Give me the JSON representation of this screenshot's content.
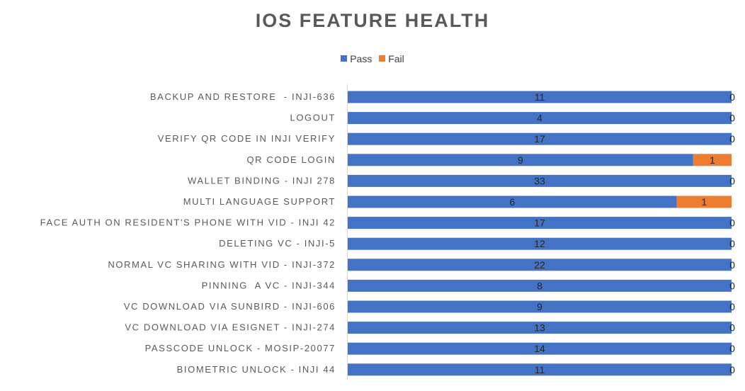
{
  "chart_data": {
    "type": "bar",
    "orientation": "horizontal",
    "stacked": true,
    "normalized": true,
    "title": "IOS FEATURE HEALTH",
    "legend_position": "top",
    "grid": false,
    "categories": [
      "BACKUP AND RESTORE  - INJI-636",
      "LOGOUT",
      "VERIFY QR CODE IN INJI VERIFY",
      "QR CODE LOGIN",
      "WALLET BINDING - INJI 278",
      "MULTI LANGUAGE SUPPORT",
      "FACE AUTH ON RESIDENT'S PHONE WITH VID - INJI 42",
      "DELETING VC - INJI-5",
      "NORMAL VC SHARING WITH VID - INJI-372",
      "PINNING  A VC - INJI-344",
      "VC DOWNLOAD VIA SUNBIRD - INJI-606",
      "VC DOWNLOAD VIA ESIGNET - INJI-274",
      "PASSCODE UNLOCK - MOSIP-20077",
      "BIOMETRIC UNLOCK - INJI 44"
    ],
    "series": [
      {
        "name": "Pass",
        "color": "#4472C4",
        "values": [
          11,
          4,
          17,
          9,
          33,
          6,
          17,
          12,
          22,
          8,
          9,
          13,
          14,
          11
        ]
      },
      {
        "name": "Fail",
        "color": "#ED7D31",
        "values": [
          0,
          0,
          0,
          1,
          0,
          1,
          0,
          0,
          0,
          0,
          0,
          0,
          0,
          0
        ]
      }
    ]
  }
}
